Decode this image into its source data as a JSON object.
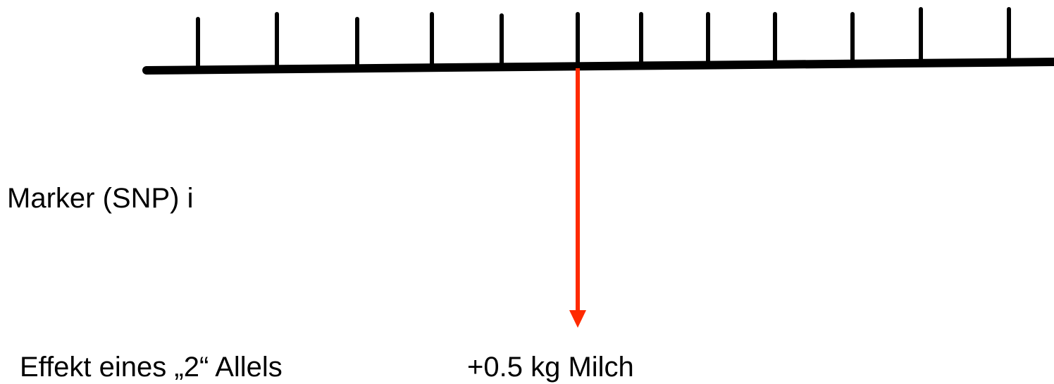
{
  "labels": {
    "marker": "Marker (SNP) i",
    "effect": "Effekt eines „2“ Allels",
    "value": "+0.5 kg Milch"
  }
}
